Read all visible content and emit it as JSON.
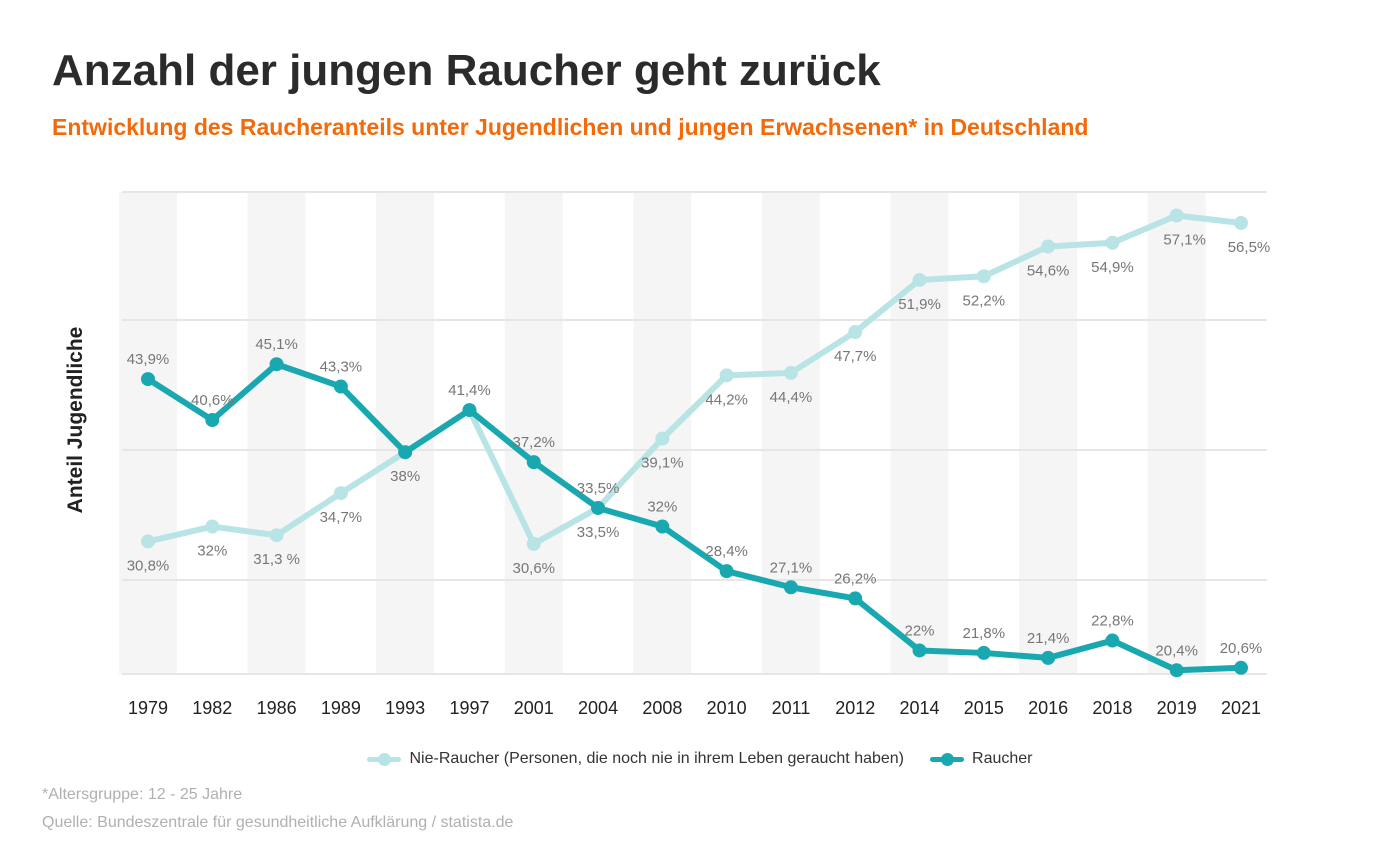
{
  "title": "Anzahl der jungen Raucher geht zurück",
  "subtitle": "Entwicklung des Raucheranteils unter Jugendlichen und jungen Erwachsenen* in Deutschland",
  "footnote": "*Altersgruppe: 12 - 25 Jahre",
  "source": "Quelle: Bundeszentrale für gesundheitliche Aufklärung / statista.de",
  "chart_data": {
    "type": "line",
    "title": "",
    "xlabel": "",
    "ylabel": "Anteil Jugendliche",
    "ylim": [
      20.1,
      59
    ],
    "grid": true,
    "y_tick_labels_shown": false,
    "legend_position": "bottom",
    "categories": [
      "1979",
      "1982",
      "1986",
      "1989",
      "1993",
      "1997",
      "2001",
      "2004",
      "2008",
      "2010",
      "2011",
      "2012",
      "2014",
      "2015",
      "2016",
      "2018",
      "2019",
      "2021"
    ],
    "series": [
      {
        "name": "Nie-Raucher (Personen, die noch nie in ihrem Leben geraucht haben)",
        "color": "#b8e4e6",
        "values": [
          30.8,
          32,
          31.3,
          34.7,
          38,
          41.4,
          30.6,
          33.5,
          39.1,
          44.2,
          44.4,
          47.7,
          51.9,
          52.2,
          54.6,
          54.9,
          57.1,
          56.5
        ],
        "labels": [
          "30,8%",
          "32%",
          "31,3 %",
          "34,7%",
          "",
          "",
          "30,6%",
          "33,5%",
          "39,1%",
          "44,2%",
          "44,4%",
          "47,7%",
          "51,9%",
          "52,2%",
          "54,6%",
          "54,9%",
          "57,1%",
          "56,5%"
        ]
      },
      {
        "name": "Raucher",
        "color": "#1aa8b0",
        "values": [
          43.9,
          40.6,
          45.1,
          43.3,
          38,
          41.4,
          37.2,
          33.5,
          32,
          28.4,
          27.1,
          26.2,
          22,
          21.8,
          21.4,
          22.8,
          20.4,
          20.6
        ],
        "labels": [
          "43,9%",
          "40,6%",
          "45,1%",
          "43,3%",
          "38%",
          "41,4%",
          "37,2%",
          "33,5%",
          "32%",
          "28,4%",
          "27,1%",
          "26,2%",
          "22%",
          "21,8%",
          "21,4%",
          "22,8%",
          "20,4%",
          "20,6%"
        ]
      }
    ]
  }
}
